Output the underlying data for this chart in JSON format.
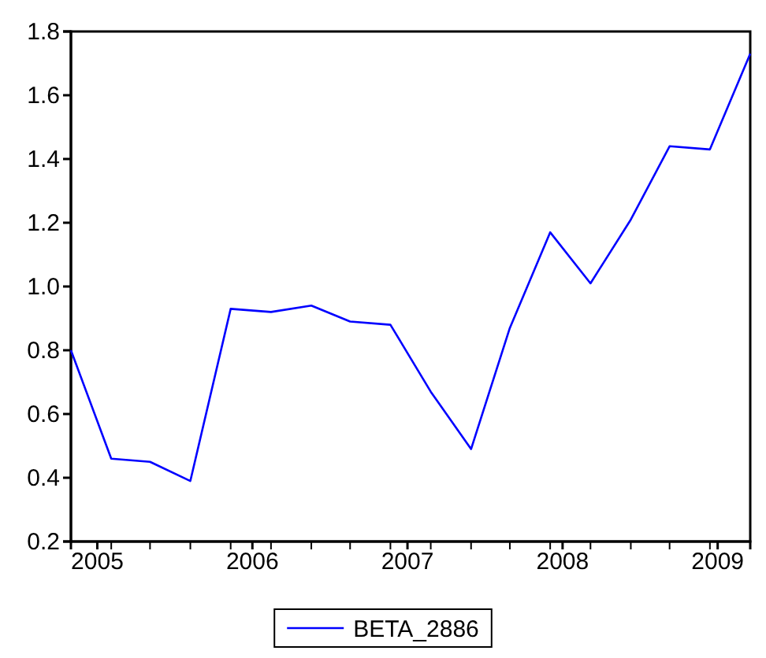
{
  "chart_data": {
    "type": "line",
    "x": [
      2004.83,
      2005.09,
      2005.34,
      2005.6,
      2005.86,
      2006.12,
      2006.38,
      2006.63,
      2006.89,
      2007.15,
      2007.41,
      2007.66,
      2007.92,
      2008.18,
      2008.44,
      2008.69,
      2008.95,
      2009.21
    ],
    "series": [
      {
        "name": "BETA_2886",
        "color": "#0000ff",
        "values": [
          0.8,
          0.46,
          0.45,
          0.39,
          0.93,
          0.92,
          0.94,
          0.89,
          0.88,
          0.67,
          0.49,
          0.87,
          1.17,
          1.01,
          1.21,
          1.44,
          1.43,
          1.73
        ]
      }
    ],
    "xlim": [
      2004.83,
      2009.21
    ],
    "xticks": [
      2005,
      2006,
      2007,
      2008,
      2009
    ],
    "ylim": [
      0.2,
      1.8
    ],
    "yticks": [
      {
        "value": 0.2,
        "label": "0.2"
      },
      {
        "value": 0.4,
        "label": "0.4"
      },
      {
        "value": 0.6,
        "label": "0.6"
      },
      {
        "value": 0.8,
        "label": "0.8"
      },
      {
        "value": 1.0,
        "label": "1.0"
      },
      {
        "value": 1.2,
        "label": "1.2"
      },
      {
        "value": 1.4,
        "label": "1.4"
      },
      {
        "value": 1.6,
        "label": "1.6"
      },
      {
        "value": 1.8,
        "label": "1.8"
      }
    ],
    "grid": false,
    "legend": "bottom",
    "marker": "none",
    "line_style": "solid"
  }
}
